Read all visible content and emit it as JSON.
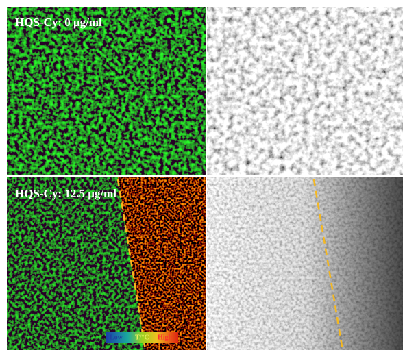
{
  "panels": [
    {
      "label": "HQS-Cy: 0 μg/ml"
    },
    {
      "label": "HQS-Cy: 12.5 μg/ml"
    }
  ],
  "colorbar": {
    "low": "Low",
    "title": "T/°C",
    "high": "High"
  }
}
